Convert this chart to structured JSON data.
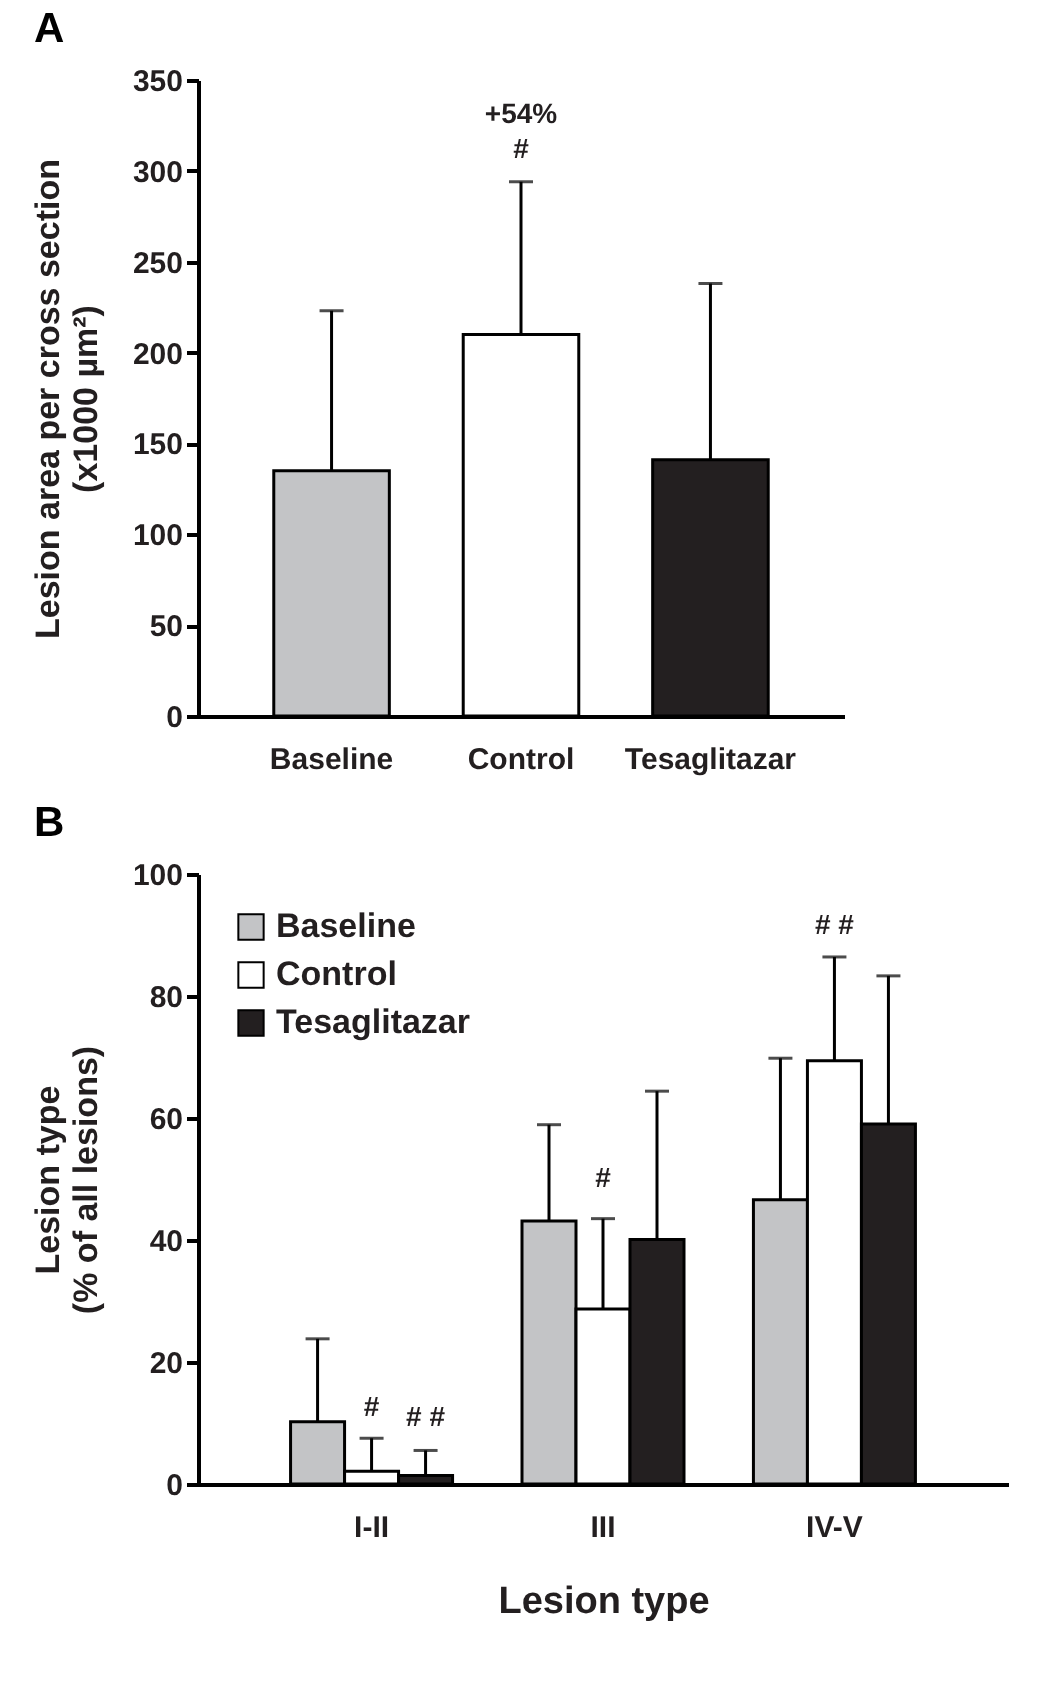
{
  "chart_data": [
    {
      "type": "bar",
      "title": "A",
      "ylabel": "Lesion area per cross section\n(x1000 µm²)",
      "categories": [
        "Baseline",
        "Control",
        "Tesaglitazar"
      ],
      "values": [
        135,
        210,
        141
      ],
      "colors": [
        "#c3c4c6",
        "#ffffff",
        "#231f20"
      ],
      "errors": [
        [
          135,
          223
        ],
        [
          210,
          294
        ],
        [
          141,
          238
        ]
      ],
      "ylim": [
        0,
        350
      ],
      "yticks": [
        0,
        50,
        100,
        150,
        200,
        250,
        300,
        350
      ],
      "annotations": [
        "+54%",
        "#"
      ]
    },
    {
      "type": "bar",
      "title": "B",
      "xlabel": "Lesion type",
      "ylabel": "Lesion type\n(% of all lesions)",
      "categories": [
        "I-II",
        "III",
        "IV-V"
      ],
      "series": [
        {
          "name": "Baseline",
          "color": "#c3c4c6",
          "values": [
            10.2,
            43.1,
            46.6
          ],
          "errors": [
            [
              10.2,
              23.8
            ],
            [
              43.1,
              58.9
            ],
            [
              46.6,
              69.8
            ]
          ]
        },
        {
          "name": "Control",
          "color": "#ffffff",
          "values": [
            2.1,
            28.7,
            69.4
          ],
          "errors": [
            [
              2.1,
              7.5
            ],
            [
              28.7,
              43.5
            ],
            [
              69.4,
              86.4
            ]
          ]
        },
        {
          "name": "Tesaglitazar",
          "color": "#231f20",
          "values": [
            1.4,
            40.1,
            59.0
          ],
          "errors": [
            [
              1.4,
              5.5
            ],
            [
              40.1,
              64.4
            ],
            [
              59.0,
              83.3
            ]
          ]
        }
      ],
      "ylim": [
        0,
        100
      ],
      "yticks": [
        0,
        20,
        40,
        60,
        80,
        100
      ],
      "legend": "top left",
      "annotations": [
        "#",
        "# #",
        "#",
        "# #"
      ]
    }
  ]
}
